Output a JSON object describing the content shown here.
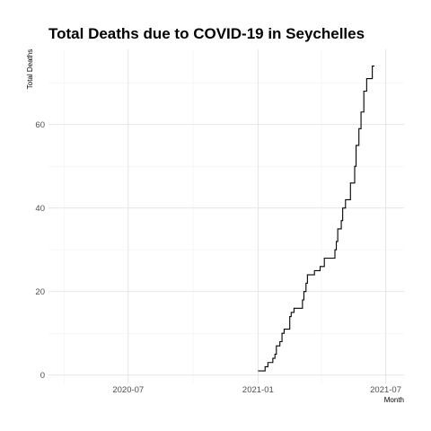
{
  "chart_data": {
    "type": "line",
    "title": "Total Deaths due to COVID-19 in Seychelles",
    "xlabel": "Month",
    "ylabel": "Total Deaths",
    "xlim": [
      "2020-03-10",
      "2021-07-27"
    ],
    "ylim": [
      -2,
      78
    ],
    "x_ticks": [
      {
        "date": "2020-07-01",
        "label": "2020-07"
      },
      {
        "date": "2021-01-01",
        "label": "2021-01"
      },
      {
        "date": "2021-07-01",
        "label": "2021-07"
      }
    ],
    "x_minor_ticks": [
      "2020-04-01",
      "2020-10-01",
      "2021-04-01"
    ],
    "y_ticks": [
      0,
      20,
      40,
      60
    ],
    "y_minor_ticks": [
      10,
      30,
      50,
      70
    ],
    "grid": true,
    "legend": "none",
    "series": [
      {
        "color": "#000000",
        "points": [
          [
            "2021-01-01",
            1
          ],
          [
            "2021-01-11",
            1
          ],
          [
            "2021-01-11",
            2
          ],
          [
            "2021-01-15",
            2
          ],
          [
            "2021-01-15",
            3
          ],
          [
            "2021-01-22",
            3
          ],
          [
            "2021-01-22",
            4
          ],
          [
            "2021-01-25",
            4
          ],
          [
            "2021-01-25",
            5
          ],
          [
            "2021-01-27",
            5
          ],
          [
            "2021-01-27",
            7
          ],
          [
            "2021-02-01",
            7
          ],
          [
            "2021-02-01",
            8
          ],
          [
            "2021-02-04",
            8
          ],
          [
            "2021-02-04",
            10
          ],
          [
            "2021-02-07",
            10
          ],
          [
            "2021-02-07",
            11
          ],
          [
            "2021-02-15",
            11
          ],
          [
            "2021-02-15",
            14
          ],
          [
            "2021-02-17",
            14
          ],
          [
            "2021-02-17",
            15
          ],
          [
            "2021-02-21",
            15
          ],
          [
            "2021-02-21",
            16
          ],
          [
            "2021-03-05",
            16
          ],
          [
            "2021-03-05",
            18
          ],
          [
            "2021-03-07",
            18
          ],
          [
            "2021-03-07",
            20
          ],
          [
            "2021-03-10",
            20
          ],
          [
            "2021-03-10",
            22
          ],
          [
            "2021-03-12",
            22
          ],
          [
            "2021-03-12",
            24
          ],
          [
            "2021-03-22",
            24
          ],
          [
            "2021-03-22",
            25
          ],
          [
            "2021-03-30",
            25
          ],
          [
            "2021-03-30",
            26
          ],
          [
            "2021-04-05",
            26
          ],
          [
            "2021-04-05",
            28
          ],
          [
            "2021-04-20",
            28
          ],
          [
            "2021-04-20",
            30
          ],
          [
            "2021-04-22",
            30
          ],
          [
            "2021-04-22",
            32
          ],
          [
            "2021-04-24",
            32
          ],
          [
            "2021-04-24",
            35
          ],
          [
            "2021-04-29",
            35
          ],
          [
            "2021-04-29",
            37
          ],
          [
            "2021-05-01",
            37
          ],
          [
            "2021-05-01",
            40
          ],
          [
            "2021-05-05",
            40
          ],
          [
            "2021-05-05",
            42
          ],
          [
            "2021-05-12",
            42
          ],
          [
            "2021-05-12",
            46
          ],
          [
            "2021-05-18",
            46
          ],
          [
            "2021-05-18",
            50
          ],
          [
            "2021-05-20",
            50
          ],
          [
            "2021-05-20",
            55
          ],
          [
            "2021-05-24",
            55
          ],
          [
            "2021-05-24",
            59
          ],
          [
            "2021-05-27",
            59
          ],
          [
            "2021-05-27",
            63
          ],
          [
            "2021-05-31",
            63
          ],
          [
            "2021-05-31",
            68
          ],
          [
            "2021-06-04",
            68
          ],
          [
            "2021-06-04",
            71
          ],
          [
            "2021-06-12",
            71
          ],
          [
            "2021-06-12",
            74
          ],
          [
            "2021-06-15",
            74
          ]
        ]
      }
    ]
  }
}
